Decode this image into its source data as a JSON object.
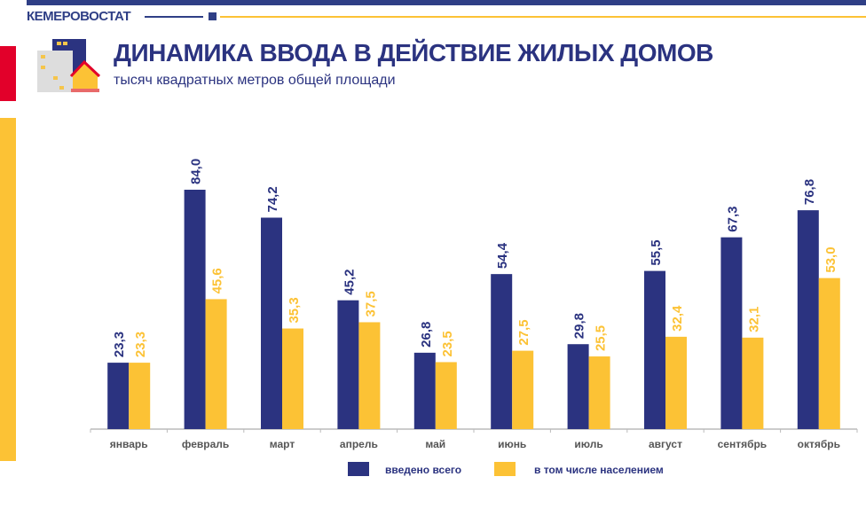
{
  "header": {
    "brand": "КЕМЕРОВОСТАТ",
    "title": "ДИНАМИКА ВВОДА В ДЕЙСТВИЕ ЖИЛЫХ ДОМОВ",
    "subtitle": "тысяч квадратных метров общей площади"
  },
  "colors": {
    "navy": "#2b3380",
    "yellow": "#fcc235",
    "red": "#e2002a"
  },
  "chart_data": {
    "type": "bar",
    "categories": [
      "январь",
      "февраль",
      "март",
      "апрель",
      "май",
      "июнь",
      "июль",
      "август",
      "сентябрь",
      "октябрь"
    ],
    "series": [
      {
        "name": "введено всего",
        "color": "#2b3380",
        "values": [
          23.3,
          84.0,
          74.2,
          45.2,
          26.8,
          54.4,
          29.8,
          55.5,
          67.3,
          76.8
        ],
        "labels": [
          "23,3",
          "84,0",
          "74,2",
          "45,2",
          "26,8",
          "54,4",
          "29,8",
          "55,5",
          "67,3",
          "76,8"
        ]
      },
      {
        "name": "в том числе населением",
        "color": "#fcc235",
        "values": [
          23.3,
          45.6,
          35.3,
          37.5,
          23.5,
          27.5,
          25.5,
          32.4,
          32.1,
          53.0
        ],
        "labels": [
          "23,3",
          "45,6",
          "35,3",
          "37,5",
          "23,5",
          "27,5",
          "25,5",
          "32,4",
          "32,1",
          "53,0"
        ]
      }
    ],
    "legend": "bottom",
    "grid": false,
    "ylim": [
      0,
      90
    ]
  }
}
